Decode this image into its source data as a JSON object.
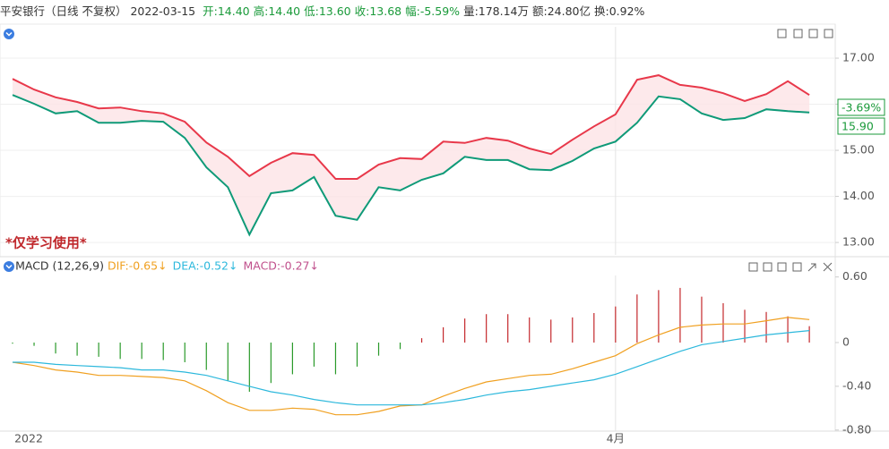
{
  "header": {
    "name": "平安银行（日线 不复权）",
    "date": "2022-03-15",
    "fields": [
      {
        "text": "开:14.40",
        "color": "#1a9a3a"
      },
      {
        "text": "高:14.40",
        "color": "#1a9a3a"
      },
      {
        "text": "低:13.60",
        "color": "#1a9a3a"
      },
      {
        "text": "收:13.68",
        "color": "#1a9a3a"
      },
      {
        "text": "幅:-5.59%",
        "color": "#1a9a3a"
      },
      {
        "text": "量:178.14万",
        "color": "#333333"
      },
      {
        "text": "额:24.80亿",
        "color": "#333333"
      },
      {
        "text": "换:0.92%",
        "color": "#333333"
      }
    ]
  },
  "chart_data": [
    {
      "type": "line",
      "ylim": [
        12.73,
        17.68
      ],
      "yticks": [
        {
          "value": 13,
          "label": "13.00"
        },
        {
          "value": 14,
          "label": "14.00"
        },
        {
          "value": 15,
          "label": "15.00"
        },
        {
          "value": 16,
          "label": "16.00"
        },
        {
          "value": 17,
          "label": "17.00"
        }
      ],
      "grid": true,
      "fill": "#fde3e6",
      "series": [
        {
          "color": "#e8384a",
          "values": [
            16.55,
            16.32,
            16.15,
            16.05,
            15.91,
            15.93,
            15.85,
            15.8,
            15.62,
            15.17,
            14.86,
            14.44,
            14.73,
            14.94,
            14.9,
            14.38,
            14.38,
            14.69,
            14.83,
            14.81,
            15.19,
            15.16,
            15.27,
            15.21,
            15.04,
            14.92,
            15.23,
            15.52,
            15.78,
            16.53,
            16.63,
            16.42,
            16.36,
            16.24,
            16.07,
            16.22,
            16.5,
            16.2
          ]
        },
        {
          "color": "#0f9a78",
          "values": [
            16.2,
            16.01,
            15.8,
            15.85,
            15.6,
            15.6,
            15.64,
            15.62,
            15.27,
            14.63,
            14.2,
            13.17,
            14.07,
            14.13,
            14.42,
            13.58,
            13.49,
            14.2,
            14.13,
            14.36,
            14.5,
            14.86,
            14.79,
            14.79,
            14.59,
            14.57,
            14.77,
            15.04,
            15.19,
            15.6,
            16.17,
            16.11,
            15.8,
            15.66,
            15.7,
            15.89,
            15.85,
            15.82
          ]
        }
      ],
      "badges": [
        {
          "text": "-3.69%",
          "color": "#1a9a3a"
        },
        {
          "text": "15.90",
          "color": "#1a9a3a"
        }
      ],
      "annotation": "*仅学习使用*"
    },
    {
      "type": "macd",
      "title": "MACD (12,26,9)",
      "legend": [
        {
          "text": "DIF:-0.65↓",
          "color": "#f0a020"
        },
        {
          "text": "DEA:-0.52↓",
          "color": "#2cb8dc"
        },
        {
          "text": "MACD:-0.27↓",
          "color": "#c0508c"
        }
      ],
      "ylim": [
        -0.81,
        0.72
      ],
      "yticks": [
        {
          "value": 0.6,
          "label": "0.60"
        },
        0,
        {
          "value": -0.4,
          "label": "-0.40"
        },
        {
          "value": -0.8,
          "label": "-0.80"
        }
      ],
      "categories": [
        "2022",
        null,
        null,
        null,
        null,
        null,
        null,
        null,
        null,
        null,
        null,
        null,
        null,
        null,
        null,
        null,
        null,
        null,
        null,
        null,
        null,
        null,
        null,
        null,
        null,
        null,
        null,
        null,
        "4月",
        null,
        null,
        null,
        null,
        null,
        null,
        null,
        null,
        null
      ],
      "up_color": "#c4282c",
      "down_color": "#2a9a2a",
      "bars": [
        -0.01,
        -0.03,
        -0.1,
        -0.12,
        -0.13,
        -0.15,
        -0.15,
        -0.16,
        -0.18,
        -0.25,
        -0.35,
        -0.45,
        -0.37,
        -0.29,
        -0.22,
        -0.29,
        -0.22,
        -0.12,
        -0.06,
        0.04,
        0.14,
        0.22,
        0.26,
        0.26,
        0.23,
        0.21,
        0.23,
        0.27,
        0.33,
        0.44,
        0.48,
        0.5,
        0.42,
        0.36,
        0.3,
        0.28,
        0.24,
        0.15
      ],
      "series": [
        {
          "color": "#f0a020",
          "values": [
            -0.18,
            -0.21,
            -0.25,
            -0.27,
            -0.3,
            -0.3,
            -0.31,
            -0.32,
            -0.35,
            -0.44,
            -0.55,
            -0.62,
            -0.62,
            -0.6,
            -0.61,
            -0.66,
            -0.66,
            -0.63,
            -0.58,
            -0.57,
            -0.49,
            -0.42,
            -0.36,
            -0.33,
            -0.3,
            -0.29,
            -0.24,
            -0.18,
            -0.12,
            -0.01,
            0.07,
            0.14,
            0.16,
            0.17,
            0.17,
            0.2,
            0.23,
            0.21
          ]
        },
        {
          "color": "#2cb8dc",
          "values": [
            -0.18,
            -0.18,
            -0.2,
            -0.21,
            -0.22,
            -0.23,
            -0.25,
            -0.25,
            -0.27,
            -0.3,
            -0.35,
            -0.4,
            -0.45,
            -0.48,
            -0.52,
            -0.55,
            -0.57,
            -0.57,
            -0.57,
            -0.57,
            -0.55,
            -0.52,
            -0.48,
            -0.45,
            -0.43,
            -0.4,
            -0.37,
            -0.34,
            -0.29,
            -0.22,
            -0.15,
            -0.08,
            -0.02,
            0.01,
            0.04,
            0.07,
            0.09,
            0.11
          ]
        }
      ]
    }
  ]
}
